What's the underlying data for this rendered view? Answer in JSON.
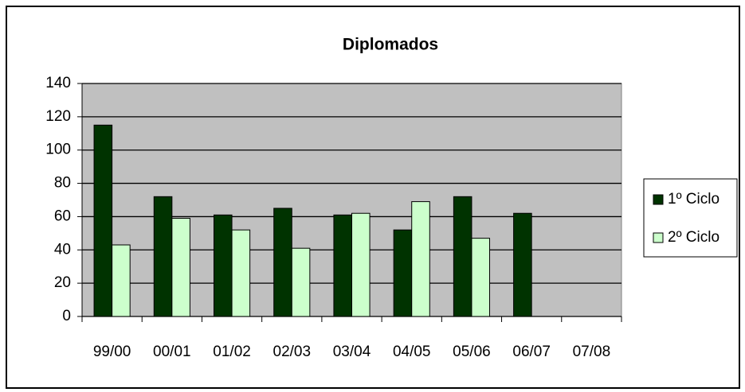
{
  "chart_data": {
    "type": "bar",
    "title": "Diplomados",
    "categories": [
      "99/00",
      "00/01",
      "01/02",
      "02/03",
      "03/04",
      "04/05",
      "05/06",
      "06/07",
      "07/08"
    ],
    "series": [
      {
        "name": "1º Ciclo",
        "color": "#003300",
        "values": [
          115,
          72,
          61,
          65,
          61,
          52,
          72,
          62,
          null
        ]
      },
      {
        "name": "2º Ciclo",
        "color": "#ccffcc",
        "values": [
          43,
          59,
          52,
          41,
          62,
          69,
          47,
          null,
          null
        ]
      }
    ],
    "ylim": [
      0,
      140
    ],
    "yticks": [
      0,
      20,
      40,
      60,
      80,
      100,
      120,
      140
    ],
    "grid": true,
    "legend": "right"
  }
}
